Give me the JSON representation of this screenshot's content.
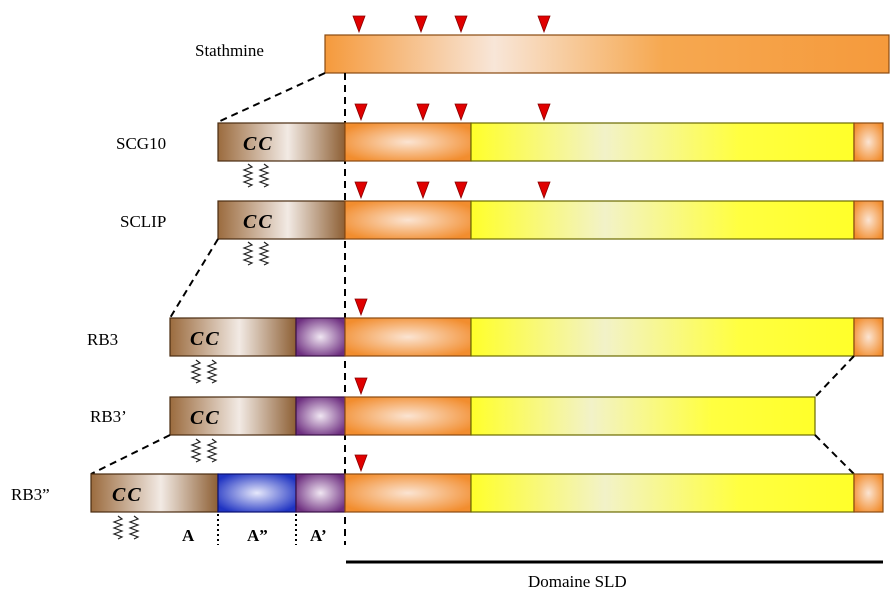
{
  "proteins": {
    "stathmine": "Stathmine",
    "scg10": "SCG10",
    "sclip": "SCLIP",
    "rb3": "RB3",
    "rb3p": "RB3’",
    "rb3pp": "RB3”"
  },
  "domains": {
    "cc": "CC",
    "a": "A",
    "a2": "A”",
    "a1": "A’",
    "sld": "Domaine SLD"
  },
  "colors": {
    "orange": "#f59a3c",
    "yellow": "#ffff33",
    "brown": "#9b6b3e",
    "purple": "#7a3d8a",
    "blue": "#2a3fcc",
    "marker": "#e00000"
  }
}
